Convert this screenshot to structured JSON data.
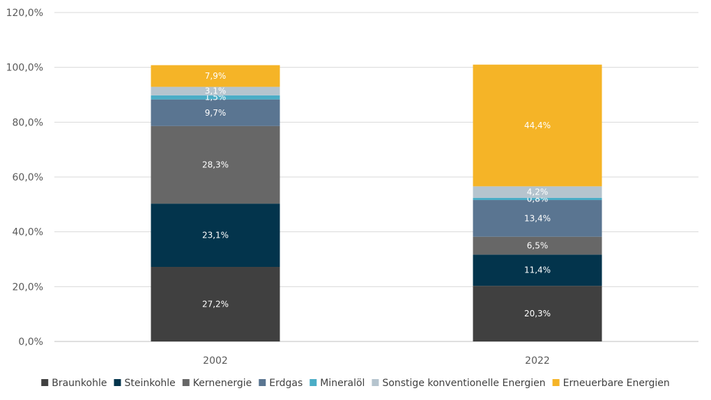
{
  "chart_data": {
    "type": "bar",
    "stacked": true,
    "categories": [
      "2002",
      "2022"
    ],
    "series": [
      {
        "name": "Braunkohle",
        "color": "#404040",
        "values": [
          27.2,
          20.3
        ],
        "labels": [
          "27,2%",
          "20,3%"
        ]
      },
      {
        "name": "Steinkohle",
        "color": "#03344c",
        "values": [
          23.1,
          11.4
        ],
        "labels": [
          "23,1%",
          "11,4%"
        ]
      },
      {
        "name": "Kernenergie",
        "color": "#676767",
        "values": [
          28.3,
          6.5
        ],
        "labels": [
          "28,3%",
          "6,5%"
        ]
      },
      {
        "name": "Erdgas",
        "color": "#5a7591",
        "values": [
          9.7,
          13.4
        ],
        "labels": [
          "9,7%",
          "13,4%"
        ]
      },
      {
        "name": "Mineralöl",
        "color": "#4badc6",
        "values": [
          1.5,
          0.8
        ],
        "labels": [
          "1,5%",
          "0,8%"
        ]
      },
      {
        "name": "Sonstige konventionelle Energien",
        "color": "#b5c4ce",
        "values": [
          3.1,
          4.2
        ],
        "labels": [
          "3,1%",
          "4,2%"
        ]
      },
      {
        "name": "Erneuerbare Energien",
        "color": "#f5b427",
        "values": [
          7.9,
          44.4
        ],
        "labels": [
          "7,9%",
          "44,4%"
        ]
      }
    ],
    "y_ticks": [
      "0,0%",
      "20,0%",
      "40,0%",
      "60,0%",
      "80,0%",
      "100,0%",
      "120,0%"
    ],
    "ylim": [
      0,
      120
    ],
    "grid": true,
    "legend_position": "bottom"
  }
}
